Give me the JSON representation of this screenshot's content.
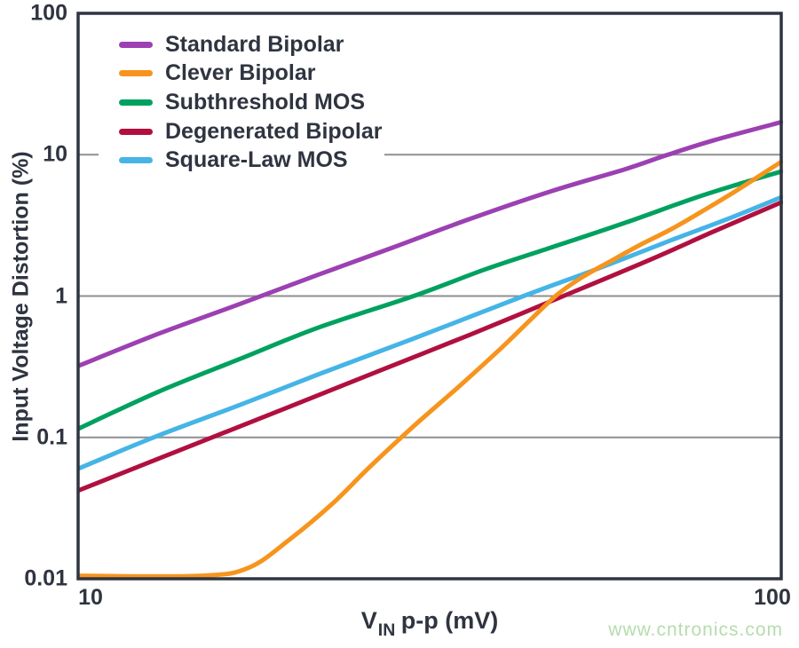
{
  "watermark": {
    "text": "www.cntronics.com",
    "color": "#b6dcae"
  },
  "style_colors": {
    "frame": "#2f3440",
    "text": "#2f3440",
    "grid": "#8f8f8f",
    "background": "#ffffff"
  },
  "chart_data": {
    "type": "line",
    "title": "",
    "xlabel": {
      "base": "V",
      "sub": "IN",
      "rest": " p-p (mV)"
    },
    "ylabel": "Input Voltage Distortion (%)",
    "x_scale": "log",
    "y_scale": "log",
    "xlim": [
      10,
      100
    ],
    "ylim": [
      0.01,
      100
    ],
    "grid": "horizontal decades only",
    "gridlines_y": [
      10,
      1,
      0.1
    ],
    "x_ticks": [
      {
        "value": 10,
        "label": "10"
      },
      {
        "value": 100,
        "label": "100"
      }
    ],
    "y_ticks": [
      {
        "value": 100,
        "label": "100"
      },
      {
        "value": 10,
        "label": "10"
      },
      {
        "value": 1,
        "label": "1"
      },
      {
        "value": 0.1,
        "label": "0.1"
      },
      {
        "value": 0.01,
        "label": "0.01"
      }
    ],
    "legend_position": "top-left inside plot, white background",
    "series": [
      {
        "name": "Standard Bipolar",
        "color": "#9c40b2",
        "x": [
          10,
          13,
          17,
          22,
          28,
          36,
          47,
          60,
          69,
          80,
          100
        ],
        "y": [
          0.32,
          0.54,
          0.88,
          1.42,
          2.2,
          3.5,
          5.5,
          7.9,
          10.0,
          12.6,
          17.0
        ]
      },
      {
        "name": "Clever Bipolar",
        "color": "#f7941d",
        "x": [
          10,
          15,
          17.5,
          20,
          23,
          26,
          30,
          35,
          40,
          44,
          48,
          52,
          57,
          63,
          70,
          78,
          87,
          100
        ],
        "y": [
          0.0105,
          0.0105,
          0.012,
          0.019,
          0.034,
          0.062,
          0.12,
          0.235,
          0.43,
          0.68,
          1.02,
          1.35,
          1.75,
          2.3,
          3.0,
          4.1,
          5.7,
          8.9
        ]
      },
      {
        "name": "Subthreshold MOS",
        "color": "#00a160",
        "x": [
          10,
          13,
          17,
          22,
          30,
          38,
          47,
          60,
          75,
          88,
          100
        ],
        "y": [
          0.115,
          0.21,
          0.36,
          0.6,
          1.0,
          1.55,
          2.2,
          3.3,
          4.9,
          6.3,
          7.6
        ]
      },
      {
        "name": "Degenerated Bipolar",
        "color": "#b01040",
        "x": [
          10,
          15.5,
          20,
          27,
          36,
          49,
          65,
          80,
          100
        ],
        "y": [
          0.042,
          0.1,
          0.165,
          0.3,
          0.53,
          1.0,
          1.8,
          2.85,
          4.6
        ]
      },
      {
        "name": "Square-Law MOS",
        "color": "#45b4e6",
        "x": [
          10,
          12.8,
          17,
          22,
          30,
          43,
          55,
          70,
          85,
          100
        ],
        "y": [
          0.06,
          0.1,
          0.17,
          0.28,
          0.5,
          1.0,
          1.57,
          2.5,
          3.6,
          5.0
        ]
      }
    ],
    "draw_order": [
      0,
      2,
      3,
      4,
      1
    ]
  }
}
